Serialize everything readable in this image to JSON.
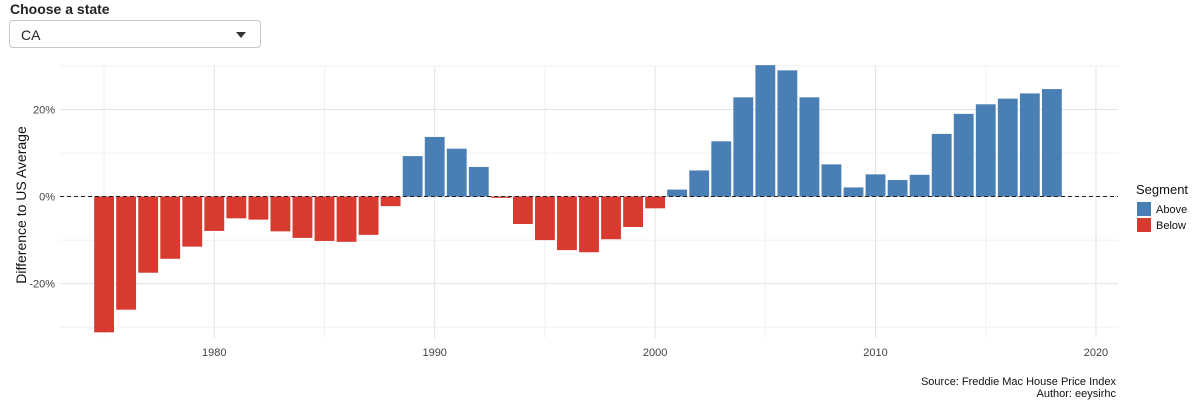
{
  "control": {
    "label": "Choose a state",
    "selected": "CA"
  },
  "chart_data": {
    "type": "bar",
    "xlabel": "",
    "ylabel": "Difference to US Average",
    "x_ticks": [
      1980,
      1990,
      2000,
      2010,
      2020
    ],
    "x_range": [
      1973,
      2021
    ],
    "y_ticks": [
      -0.2,
      0,
      0.2
    ],
    "y_tick_labels": [
      "-20%",
      "0%",
      "20%"
    ],
    "ylim": [
      -0.325,
      0.3
    ],
    "grid": true,
    "reference_line": {
      "y": 0,
      "style": "dashed"
    },
    "legend": {
      "title": "Segment",
      "position": "right",
      "entries": [
        {
          "label": "Above",
          "color": "#4a7fb5"
        },
        {
          "label": "Below",
          "color": "#d73b2f"
        }
      ]
    },
    "colors": {
      "above": "#4a7fb5",
      "below": "#d73b2f"
    },
    "x": [
      1975,
      1976,
      1977,
      1978,
      1979,
      1980,
      1981,
      1982,
      1983,
      1984,
      1985,
      1986,
      1987,
      1988,
      1989,
      1990,
      1991,
      1992,
      1993,
      1994,
      1995,
      1996,
      1997,
      1998,
      1999,
      2000,
      2001,
      2002,
      2003,
      2004,
      2005,
      2006,
      2007,
      2008,
      2009,
      2010,
      2011,
      2012,
      2013,
      2014,
      2015,
      2016,
      2017,
      2018
    ],
    "values": [
      -0.312,
      -0.26,
      -0.175,
      -0.143,
      -0.115,
      -0.079,
      -0.05,
      -0.053,
      -0.08,
      -0.095,
      -0.102,
      -0.104,
      -0.088,
      -0.022,
      0.093,
      0.137,
      0.11,
      0.068,
      -0.003,
      -0.063,
      -0.1,
      -0.123,
      -0.128,
      -0.098,
      -0.07,
      -0.027,
      0.016,
      0.06,
      0.127,
      0.228,
      0.302,
      0.29,
      0.228,
      0.074,
      0.021,
      0.051,
      0.038,
      0.05,
      0.144,
      0.19,
      0.212,
      0.225,
      0.237,
      0.247
    ]
  },
  "caption": {
    "source": "Source: Freddie Mac House Price Index",
    "author": "Author: eeysirhc"
  }
}
